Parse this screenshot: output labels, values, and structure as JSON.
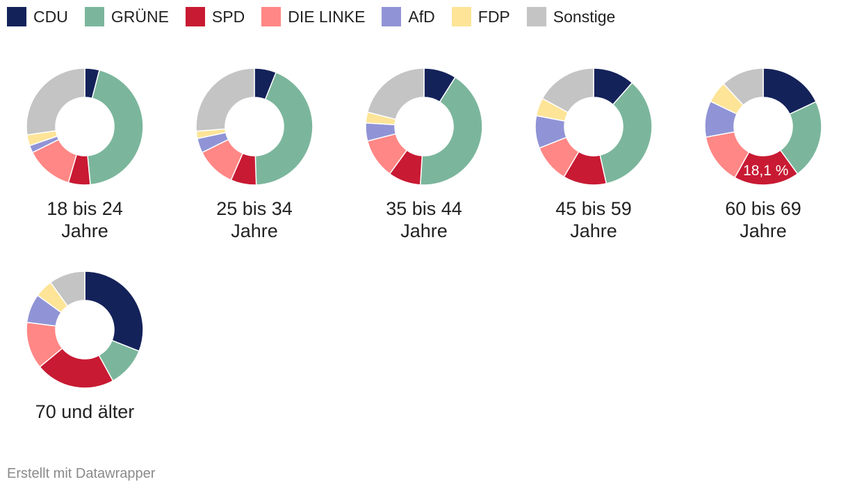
{
  "legend": [
    {
      "name": "CDU",
      "color": "#14225a"
    },
    {
      "name": "GRÜNE",
      "color": "#7bb69c"
    },
    {
      "name": "SPD",
      "color": "#c81a33"
    },
    {
      "name": "DIE LINKE",
      "color": "#ff8785"
    },
    {
      "name": "AfD",
      "color": "#9094d6"
    },
    {
      "name": "FDP",
      "color": "#fde497"
    },
    {
      "name": "Sonstige",
      "color": "#c4c4c4"
    }
  ],
  "chart_data": {
    "type": "pie",
    "variant": "donut",
    "series_names": [
      "CDU",
      "GRÜNE",
      "SPD",
      "DIE LINKE",
      "AfD",
      "FDP",
      "Sonstige"
    ],
    "groups": [
      {
        "label_line1": "18 bis 24",
        "label_line2": "Jahre",
        "values": [
          4,
          44,
          6,
          13,
          2,
          3,
          27
        ],
        "data_label": ""
      },
      {
        "label_line1": "25 bis 34",
        "label_line2": "Jahre",
        "values": [
          6,
          43,
          7,
          11,
          4,
          2,
          26
        ],
        "data_label": ""
      },
      {
        "label_line1": "35 bis 44",
        "label_line2": "Jahre",
        "values": [
          9,
          42,
          9,
          11,
          5,
          3,
          21
        ],
        "data_label": ""
      },
      {
        "label_line1": "45 bis 59",
        "label_line2": "Jahre",
        "values": [
          11.5,
          35,
          12,
          10.5,
          9,
          5,
          17
        ],
        "data_label": ""
      },
      {
        "label_line1": "60 bis 69",
        "label_line2": "Jahre",
        "values": [
          18,
          22,
          18.1,
          14,
          10,
          6,
          11.9
        ],
        "data_label": "18,1 %"
      },
      {
        "label_line1": "70 und älter",
        "label_line2": "",
        "values": [
          31,
          11,
          22,
          13,
          8,
          5,
          10
        ],
        "data_label": ""
      }
    ]
  },
  "footer": "Erstellt mit Datawrapper"
}
